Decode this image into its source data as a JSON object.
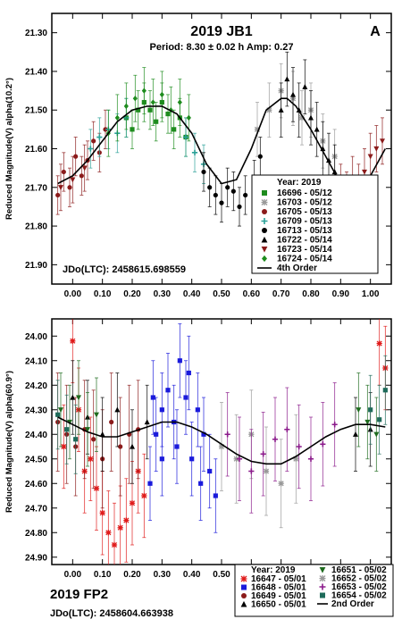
{
  "chart_data": [
    {
      "type": "scatter",
      "title": "2019 JB1",
      "subtitle": "Period: 8.30 ± 0.02 h   Amp: 0.27",
      "panel_letter": "A",
      "ylabel": "Reduced Magnitude(V) alpha(10.2°)",
      "xlabel": "",
      "xlim": [
        -0.07,
        1.07
      ],
      "ylim": [
        21.95,
        21.25
      ],
      "y_inverted": true,
      "xticks": [
        "0.00",
        "0.10",
        "0.20",
        "0.30",
        "0.40",
        "0.50",
        "0.60",
        "0.70",
        "0.80",
        "0.90",
        "1.00"
      ],
      "yticks": [
        "21.30",
        "21.40",
        "21.50",
        "21.60",
        "21.70",
        "21.80",
        "21.90"
      ],
      "jdo": "JDo(LTC): 2458615.698559",
      "legend": {
        "title": "Year: 2019",
        "placement": "lower-right",
        "items": [
          {
            "label": "16696 - 05/12",
            "color": "#1e8c1e",
            "marker": "square"
          },
          {
            "label": "16703 - 05/12",
            "color": "#999999",
            "marker": "star"
          },
          {
            "label": "16705 - 05/13",
            "color": "#8b1a1a",
            "marker": "circle"
          },
          {
            "label": "16709 - 05/13",
            "color": "#2aa198",
            "marker": "plus"
          },
          {
            "label": "16713 - 05/13",
            "color": "#000000",
            "marker": "circle"
          },
          {
            "label": "16722 - 05/14",
            "color": "#000000",
            "marker": "triangle"
          },
          {
            "label": "16723 - 05/14",
            "color": "#8b1a1a",
            "marker": "triangle-down"
          },
          {
            "label": "16724 - 05/14",
            "color": "#1e8c1e",
            "marker": "diamond"
          },
          {
            "label": "4th Order",
            "color": "#000000",
            "marker": "line"
          }
        ]
      },
      "fit": {
        "name": "4th Order",
        "x": [
          -0.05,
          0.0,
          0.05,
          0.1,
          0.15,
          0.2,
          0.25,
          0.3,
          0.35,
          0.4,
          0.45,
          0.5,
          0.55,
          0.6,
          0.65,
          0.7,
          0.72,
          0.75,
          0.8,
          0.85,
          0.9,
          0.95,
          1.0,
          1.05
        ],
        "y": [
          21.69,
          21.67,
          21.63,
          21.58,
          21.53,
          21.5,
          21.49,
          21.49,
          21.51,
          21.56,
          21.64,
          21.69,
          21.68,
          21.6,
          21.5,
          21.47,
          21.47,
          21.49,
          21.55,
          21.62,
          21.69,
          21.71,
          21.67,
          21.6
        ]
      },
      "series": [
        {
          "name": "16696 - 05/12",
          "color": "#1e8c1e",
          "marker": "square",
          "x": [
            0.18,
            0.2,
            0.22,
            0.24,
            0.26,
            0.28,
            0.3,
            0.32,
            0.34,
            0.36,
            0.38
          ],
          "y": [
            21.52,
            21.55,
            21.5,
            21.48,
            21.5,
            21.53,
            21.48,
            21.51,
            21.55,
            21.52,
            21.57
          ],
          "err": [
            0.05,
            0.05,
            0.05,
            0.05,
            0.05,
            0.05,
            0.05,
            0.05,
            0.05,
            0.05,
            0.05
          ]
        },
        {
          "name": "16703 - 05/12",
          "color": "#999999",
          "marker": "star",
          "x": [
            0.62,
            0.66,
            0.7,
            0.74,
            0.77,
            0.8,
            0.84,
            0.88
          ],
          "y": [
            21.55,
            21.5,
            21.45,
            21.47,
            21.52,
            21.5,
            21.58,
            21.62
          ],
          "err": [
            0.07,
            0.07,
            0.07,
            0.07,
            0.07,
            0.07,
            0.07,
            0.07
          ]
        },
        {
          "name": "16705 - 05/13",
          "color": "#8b1a1a",
          "marker": "circle",
          "x": [
            -0.05,
            -0.03,
            -0.01,
            0.01,
            0.03,
            0.05,
            0.07,
            0.09,
            0.11
          ],
          "y": [
            21.72,
            21.66,
            21.7,
            21.62,
            21.67,
            21.63,
            21.58,
            21.61,
            21.55
          ],
          "err": [
            0.05,
            0.05,
            0.05,
            0.05,
            0.05,
            0.05,
            0.05,
            0.05,
            0.05
          ]
        },
        {
          "name": "16709 - 05/13",
          "color": "#2aa198",
          "marker": "plus",
          "x": [
            0.06,
            0.09,
            0.12,
            0.15,
            0.18,
            0.38,
            0.41,
            0.44
          ],
          "y": [
            21.6,
            21.57,
            21.55,
            21.56,
            21.52,
            21.57,
            21.61,
            21.64
          ],
          "err": [
            0.05,
            0.05,
            0.05,
            0.05,
            0.05,
            0.05,
            0.05,
            0.05
          ]
        },
        {
          "name": "16713 - 05/13",
          "color": "#000000",
          "marker": "circle",
          "x": [
            0.44,
            0.46,
            0.48,
            0.5,
            0.52,
            0.54,
            0.56,
            0.58,
            0.61,
            0.63
          ],
          "y": [
            21.66,
            21.7,
            21.72,
            21.74,
            21.7,
            21.71,
            21.75,
            21.72,
            21.68,
            21.62
          ],
          "err": [
            0.05,
            0.05,
            0.05,
            0.05,
            0.05,
            0.05,
            0.05,
            0.05,
            0.05,
            0.05
          ]
        },
        {
          "name": "16722 - 05/14",
          "color": "#000000",
          "marker": "triangle",
          "x": [
            0.7,
            0.72,
            0.74,
            0.76,
            0.78,
            0.8,
            0.82,
            0.84,
            0.86,
            0.88
          ],
          "y": [
            21.5,
            21.42,
            21.46,
            21.5,
            21.44,
            21.52,
            21.55,
            21.6,
            21.63,
            21.66
          ],
          "err": [
            0.07,
            0.07,
            0.07,
            0.07,
            0.07,
            0.07,
            0.07,
            0.07,
            0.07,
            0.07
          ]
        },
        {
          "name": "16723 - 05/14",
          "color": "#8b1a1a",
          "marker": "triangle-down",
          "x": [
            0.9,
            0.92,
            0.94,
            0.96,
            0.98,
            1.0,
            1.02,
            1.04,
            -0.04,
            0.0,
            0.04
          ],
          "y": [
            21.7,
            21.72,
            21.68,
            21.7,
            21.66,
            21.62,
            21.6,
            21.58,
            21.7,
            21.68,
            21.65
          ],
          "err": [
            0.06,
            0.06,
            0.06,
            0.06,
            0.06,
            0.06,
            0.06,
            0.06,
            0.06,
            0.06,
            0.06
          ]
        },
        {
          "name": "16724 - 05/14",
          "color": "#1e8c1e",
          "marker": "diamond",
          "x": [
            0.12,
            0.15,
            0.18,
            0.21,
            0.24,
            0.27,
            0.3,
            0.33,
            0.36,
            0.39
          ],
          "y": [
            21.56,
            21.52,
            21.49,
            21.47,
            21.45,
            21.48,
            21.46,
            21.5,
            21.48,
            21.52
          ],
          "err": [
            0.06,
            0.06,
            0.06,
            0.06,
            0.06,
            0.06,
            0.06,
            0.06,
            0.06,
            0.06
          ]
        }
      ]
    },
    {
      "type": "scatter",
      "title": "2019 FP2",
      "ylabel": "Reduced Magnitude(V) alpha(60.9°)",
      "xlabel": "",
      "xlim": [
        -0.07,
        1.07
      ],
      "ylim": [
        24.93,
        23.93
      ],
      "y_inverted": true,
      "xticks": [
        "0.00",
        "0.10",
        "0.20",
        "0.30",
        "0.40",
        "0.50",
        "0.60",
        "0.70",
        "0.80",
        "0.90",
        "1.00"
      ],
      "yticks": [
        "24.00",
        "24.10",
        "24.20",
        "24.30",
        "24.40",
        "24.50",
        "24.60",
        "24.70",
        "24.80",
        "24.90"
      ],
      "jdo": "JDo(LTC): 2458604.663938",
      "legend": {
        "title": "Year: 2019",
        "placement": "bottom-right",
        "items": [
          {
            "label": "16647 - 05/01",
            "color": "#e01b1b",
            "marker": "star"
          },
          {
            "label": "16648 - 05/01",
            "color": "#1a1adb",
            "marker": "square"
          },
          {
            "label": "16649 - 05/01",
            "color": "#8b1a1a",
            "marker": "circle"
          },
          {
            "label": "16650 - 05/01",
            "color": "#000000",
            "marker": "triangle"
          },
          {
            "label": "16651 - 05/02",
            "color": "#1e6b1e",
            "marker": "triangle-down"
          },
          {
            "label": "16652 - 05/02",
            "color": "#999999",
            "marker": "star"
          },
          {
            "label": "16653 - 05/02",
            "color": "#8b1a8b",
            "marker": "plus"
          },
          {
            "label": "16654 - 05/02",
            "color": "#1e6b5a",
            "marker": "square"
          },
          {
            "label": "2nd Order",
            "color": "#000000",
            "marker": "line"
          }
        ]
      },
      "fit": {
        "name": "2nd Order",
        "x": [
          -0.05,
          0.0,
          0.05,
          0.1,
          0.15,
          0.2,
          0.25,
          0.3,
          0.35,
          0.4,
          0.45,
          0.5,
          0.55,
          0.6,
          0.65,
          0.7,
          0.75,
          0.8,
          0.85,
          0.9,
          0.95,
          1.0,
          1.05
        ],
        "y": [
          24.33,
          24.36,
          24.39,
          24.41,
          24.41,
          24.39,
          24.37,
          24.35,
          24.35,
          24.37,
          24.4,
          24.44,
          24.48,
          24.51,
          24.52,
          24.52,
          24.49,
          24.45,
          24.41,
          24.38,
          24.36,
          24.36,
          24.37
        ]
      },
      "series": [
        {
          "name": "16647 - 05/01",
          "color": "#e01b1b",
          "marker": "star",
          "x": [
            -0.03,
            0.0,
            0.02,
            0.04,
            0.06,
            0.08,
            0.1,
            0.12,
            0.14,
            0.16,
            0.18,
            0.2,
            0.22,
            0.24,
            1.03,
            1.05
          ],
          "y": [
            24.45,
            24.02,
            24.3,
            24.55,
            24.5,
            24.62,
            24.72,
            24.8,
            24.85,
            24.78,
            24.75,
            24.68,
            24.55,
            24.65,
            24.03,
            24.13
          ],
          "err": [
            0.17,
            0.17,
            0.17,
            0.17,
            0.17,
            0.17,
            0.17,
            0.17,
            0.17,
            0.17,
            0.17,
            0.17,
            0.17,
            0.17,
            0.17,
            0.17
          ]
        },
        {
          "name": "16648 - 05/01",
          "color": "#1a1adb",
          "marker": "square",
          "x": [
            0.26,
            0.28,
            0.3,
            0.32,
            0.34,
            0.36,
            0.38,
            0.4,
            0.42,
            0.44,
            0.46,
            0.48,
            0.3,
            0.35,
            0.39,
            0.43,
            0.27
          ],
          "y": [
            24.6,
            24.4,
            24.3,
            24.22,
            24.35,
            24.1,
            24.25,
            24.5,
            24.3,
            24.4,
            24.55,
            24.65,
            24.5,
            24.45,
            24.15,
            24.6,
            24.25
          ],
          "err": [
            0.15,
            0.15,
            0.15,
            0.15,
            0.15,
            0.15,
            0.15,
            0.15,
            0.15,
            0.15,
            0.15,
            0.15,
            0.15,
            0.15,
            0.15,
            0.15,
            0.15
          ]
        },
        {
          "name": "16649 - 05/01",
          "color": "#8b1a1a",
          "marker": "circle",
          "x": [
            -0.05,
            -0.02,
            0.01,
            0.04,
            0.07,
            0.1,
            0.13,
            0.16,
            0.19,
            0.22
          ],
          "y": [
            24.35,
            24.4,
            24.45,
            24.38,
            24.42,
            24.5,
            24.35,
            24.45,
            24.4,
            24.38
          ],
          "err": [
            0.2,
            0.2,
            0.2,
            0.2,
            0.2,
            0.2,
            0.2,
            0.2,
            0.2,
            0.2
          ]
        },
        {
          "name": "16650 - 05/01",
          "color": "#000000",
          "marker": "triangle",
          "x": [
            0.0,
            0.05,
            0.1,
            0.15,
            0.2,
            0.25,
            0.95,
            1.0
          ],
          "y": [
            24.25,
            24.33,
            24.4,
            24.3,
            24.45,
            24.35,
            24.4,
            24.38
          ],
          "err": [
            0.15,
            0.15,
            0.15,
            0.15,
            0.15,
            0.15,
            0.15,
            0.15
          ]
        },
        {
          "name": "16651 - 05/02",
          "color": "#1e6b1e",
          "marker": "triangle-down",
          "x": [
            -0.04,
            -0.01,
            0.02,
            0.05,
            0.08,
            0.96,
            0.99,
            1.02
          ],
          "y": [
            24.3,
            24.35,
            24.25,
            24.38,
            24.32,
            24.3,
            24.35,
            24.4
          ],
          "err": [
            0.15,
            0.15,
            0.15,
            0.15,
            0.15,
            0.15,
            0.15,
            0.15
          ]
        },
        {
          "name": "16652 - 05/02",
          "color": "#999999",
          "marker": "star",
          "x": [
            0.5,
            0.55,
            0.6,
            0.65,
            0.7,
            0.75
          ],
          "y": [
            24.45,
            24.5,
            24.4,
            24.55,
            24.6,
            24.5
          ],
          "err": [
            0.18,
            0.18,
            0.18,
            0.18,
            0.18,
            0.18
          ]
        },
        {
          "name": "16653 - 05/02",
          "color": "#8b1a8b",
          "marker": "plus",
          "x": [
            0.52,
            0.56,
            0.6,
            0.64,
            0.68,
            0.72,
            0.76,
            0.8,
            0.84,
            0.88
          ],
          "y": [
            24.4,
            24.5,
            24.55,
            24.48,
            24.42,
            24.38,
            24.45,
            24.5,
            24.44,
            24.36
          ],
          "err": [
            0.17,
            0.17,
            0.17,
            0.17,
            0.17,
            0.17,
            0.17,
            0.17,
            0.17,
            0.17
          ]
        },
        {
          "name": "16654 - 05/02",
          "color": "#1e6b5a",
          "marker": "square",
          "x": [
            -0.05,
            -0.02,
            0.01,
            1.0,
            1.03,
            1.05
          ],
          "y": [
            24.32,
            24.38,
            24.42,
            24.3,
            24.34,
            24.22
          ],
          "err": [
            0.14,
            0.14,
            0.14,
            0.14,
            0.14,
            0.14
          ]
        }
      ]
    }
  ]
}
